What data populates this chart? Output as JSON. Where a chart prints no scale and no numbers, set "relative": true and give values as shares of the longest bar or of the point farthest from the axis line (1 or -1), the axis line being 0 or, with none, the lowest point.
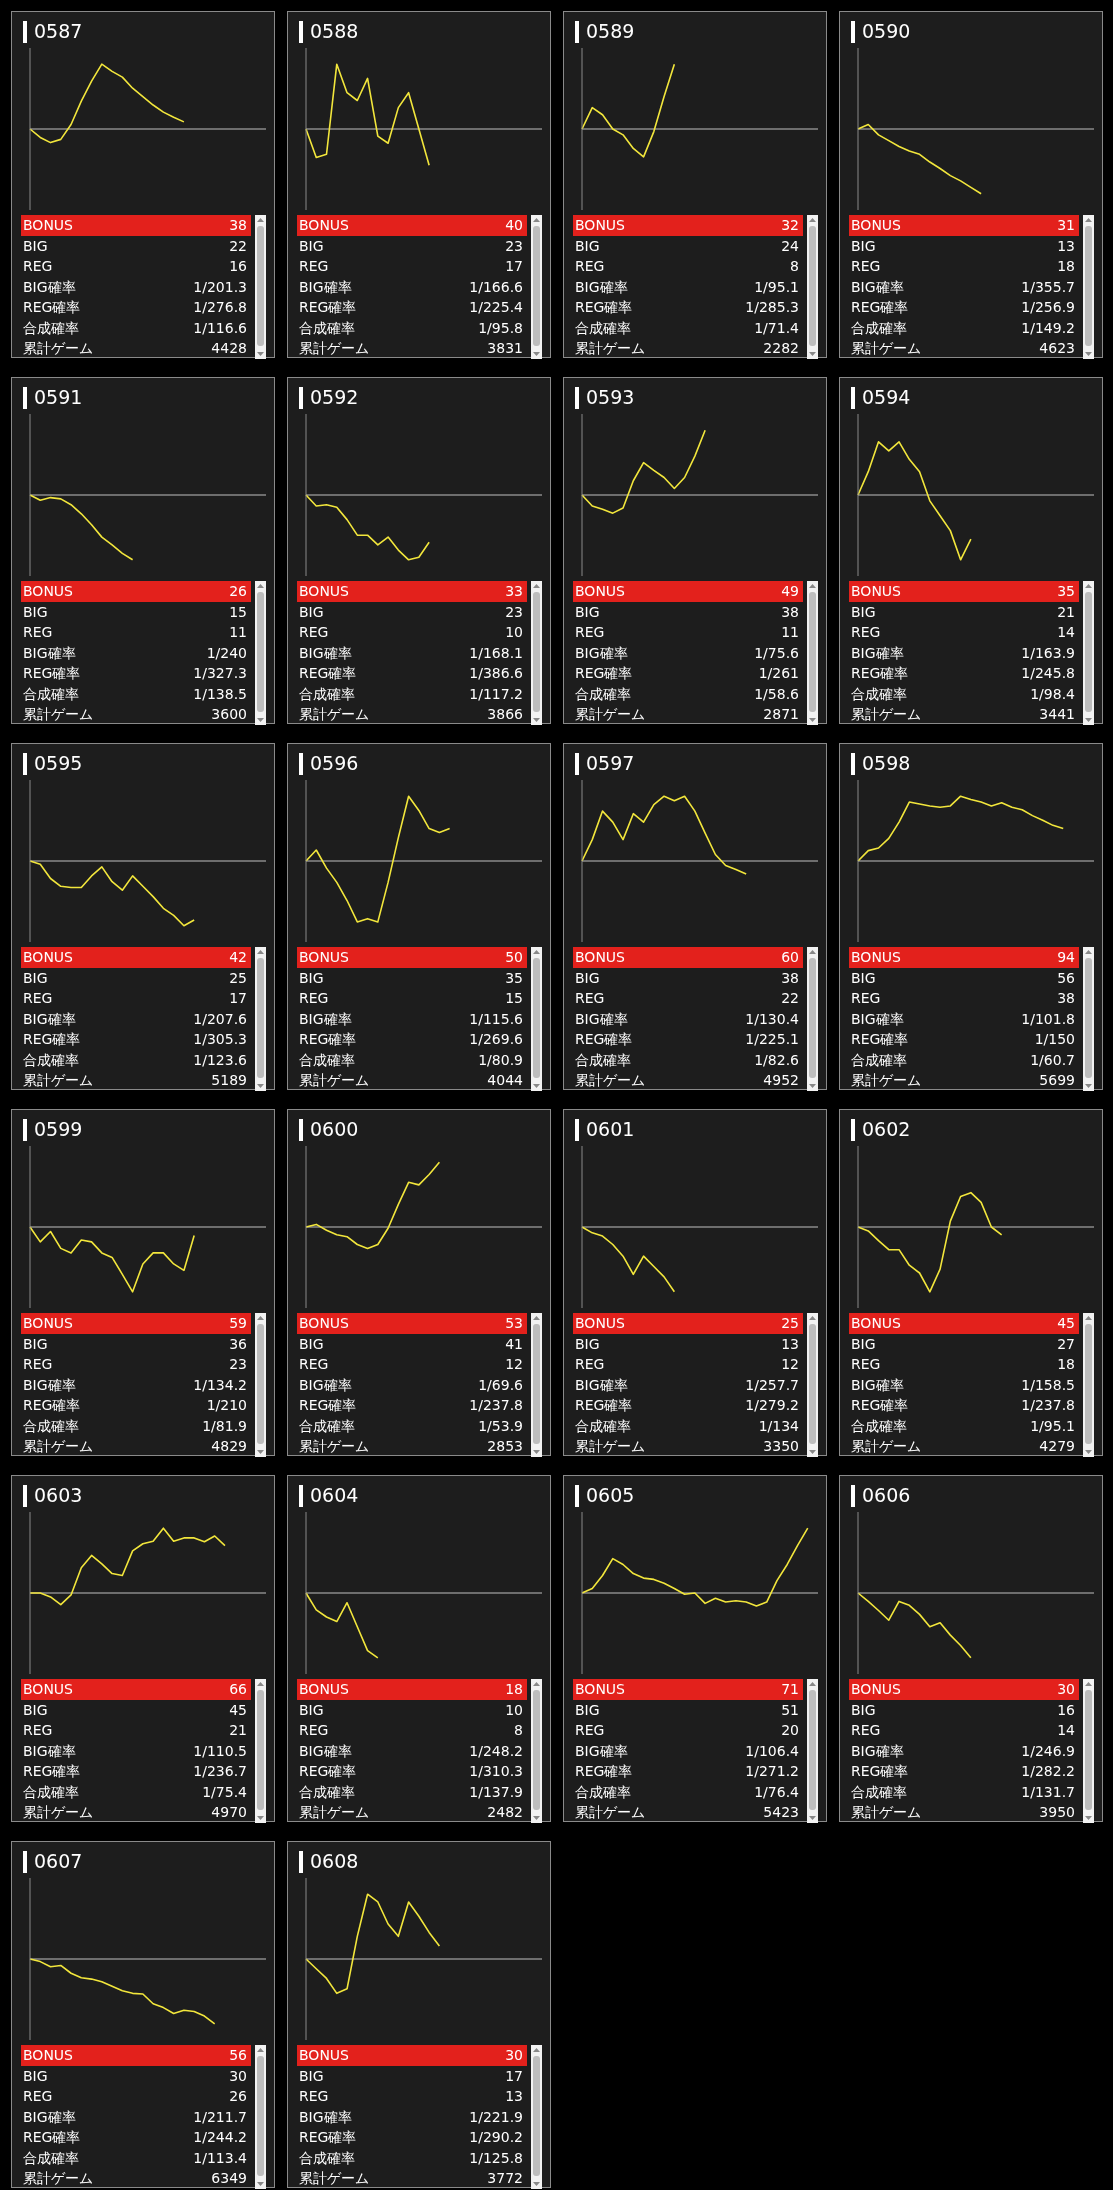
{
  "chart_data": [
    {
      "type": "line",
      "title": "0587",
      "relative": true,
      "categories": [
        null,
        null,
        null,
        null,
        null,
        null,
        null,
        null,
        null,
        null,
        null,
        null,
        null,
        null,
        null,
        null,
        null,
        null,
        null,
        null,
        null,
        null,
        null,
        null
      ],
      "series": [
        {
          "color": "#f2e63c",
          "values": [
            0,
            -0.13,
            -0.21,
            -0.16,
            0.07,
            0.43,
            0.74,
            1,
            0.89,
            0.8,
            0.63,
            0.5,
            0.37,
            0.26,
            0.18,
            0.11,
            null,
            null,
            null,
            null,
            null,
            null,
            null,
            null
          ]
        }
      ],
      "annotations": [
        "BONUS",
        "38",
        "BIG",
        "22",
        "REG",
        "16",
        "BIG確率",
        "1/201.3",
        "REG確率",
        "1/276.8",
        "合成確率",
        "1/116.6",
        "累計ゲーム",
        "4428"
      ]
    },
    {
      "type": "line",
      "title": "0588",
      "relative": true,
      "categories": [
        null,
        null,
        null,
        null,
        null,
        null,
        null,
        null,
        null,
        null,
        null,
        null,
        null,
        null,
        null,
        null,
        null,
        null,
        null,
        null,
        null,
        null,
        null,
        null
      ],
      "series": [
        {
          "color": "#f2e63c",
          "values": [
            0,
            -0.44,
            -0.39,
            1,
            0.56,
            0.44,
            0.78,
            -0.11,
            -0.22,
            0.33,
            0.56,
            0,
            -0.56,
            null,
            null,
            null,
            null,
            null,
            null,
            null,
            null,
            null,
            null,
            null
          ]
        }
      ],
      "annotations": [
        "BONUS",
        "40",
        "BIG",
        "23",
        "REG",
        "17",
        "BIG確率",
        "1/166.6",
        "REG確率",
        "1/225.4",
        "合成確率",
        "1/95.8",
        "累計ゲーム",
        "3831"
      ]
    },
    {
      "type": "line",
      "title": "0589",
      "relative": true,
      "categories": [
        null,
        null,
        null,
        null,
        null,
        null,
        null,
        null,
        null,
        null,
        null,
        null,
        null,
        null,
        null,
        null,
        null,
        null,
        null,
        null,
        null,
        null,
        null,
        null
      ],
      "series": [
        {
          "color": "#f2e63c",
          "values": [
            0,
            0.33,
            0.22,
            0,
            -0.09,
            -0.3,
            -0.43,
            -0.04,
            0.5,
            1,
            null,
            null,
            null,
            null,
            null,
            null,
            null,
            null,
            null,
            null,
            null,
            null,
            null,
            null
          ]
        }
      ],
      "annotations": [
        "BONUS",
        "32",
        "BIG",
        "24",
        "REG",
        "8",
        "BIG確率",
        "1/95.1",
        "REG確率",
        "1/285.3",
        "合成確率",
        "1/71.4",
        "累計ゲーム",
        "2282"
      ]
    },
    {
      "type": "line",
      "title": "0590",
      "relative": true,
      "categories": [
        null,
        null,
        null,
        null,
        null,
        null,
        null,
        null,
        null,
        null,
        null,
        null,
        null,
        null,
        null,
        null,
        null,
        null,
        null,
        null,
        null,
        null,
        null,
        null
      ],
      "series": [
        {
          "color": "#f2e63c",
          "values": [
            0,
            0.07,
            -0.09,
            -0.18,
            -0.27,
            -0.34,
            -0.39,
            -0.51,
            -0.61,
            -0.72,
            -0.8,
            -0.9,
            -1,
            null,
            null,
            null,
            null,
            null,
            null,
            null,
            null,
            null,
            null,
            null
          ]
        }
      ],
      "annotations": [
        "BONUS",
        "31",
        "BIG",
        "13",
        "REG",
        "18",
        "BIG確率",
        "1/355.7",
        "REG確率",
        "1/256.9",
        "合成確率",
        "1/149.2",
        "累計ゲーム",
        "4623"
      ]
    },
    {
      "type": "line",
      "title": "0591",
      "relative": true,
      "categories": [
        null,
        null,
        null,
        null,
        null,
        null,
        null,
        null,
        null,
        null,
        null,
        null,
        null,
        null,
        null,
        null,
        null,
        null,
        null,
        null,
        null,
        null,
        null,
        null
      ],
      "series": [
        {
          "color": "#f2e63c",
          "values": [
            0,
            -0.08,
            -0.04,
            -0.06,
            -0.15,
            -0.29,
            -0.46,
            -0.65,
            -0.77,
            -0.9,
            -1,
            null,
            null,
            null,
            null,
            null,
            null,
            null,
            null,
            null,
            null,
            null,
            null,
            null
          ]
        }
      ],
      "annotations": [
        "BONUS",
        "26",
        "BIG",
        "15",
        "REG",
        "11",
        "BIG確率",
        "1/240",
        "REG確率",
        "1/327.3",
        "合成確率",
        "1/138.5",
        "累計ゲーム",
        "3600"
      ]
    },
    {
      "type": "line",
      "title": "0592",
      "relative": true,
      "categories": [
        null,
        null,
        null,
        null,
        null,
        null,
        null,
        null,
        null,
        null,
        null,
        null,
        null,
        null,
        null,
        null,
        null,
        null,
        null,
        null,
        null,
        null,
        null,
        null
      ],
      "series": [
        {
          "color": "#f2e63c",
          "values": [
            0,
            -0.17,
            -0.15,
            -0.19,
            -0.38,
            -0.62,
            -0.62,
            -0.77,
            -0.65,
            -0.85,
            -1,
            -0.96,
            -0.73,
            null,
            null,
            null,
            null,
            null,
            null,
            null,
            null,
            null,
            null,
            null
          ]
        }
      ],
      "annotations": [
        "BONUS",
        "33",
        "BIG",
        "23",
        "REG",
        "10",
        "BIG確率",
        "1/168.1",
        "REG確率",
        "1/386.6",
        "合成確率",
        "1/117.2",
        "累計ゲーム",
        "3866"
      ]
    },
    {
      "type": "line",
      "title": "0593",
      "relative": true,
      "categories": [
        null,
        null,
        null,
        null,
        null,
        null,
        null,
        null,
        null,
        null,
        null,
        null,
        null,
        null,
        null,
        null,
        null,
        null,
        null,
        null,
        null,
        null,
        null,
        null
      ],
      "series": [
        {
          "color": "#f2e63c",
          "values": [
            0,
            -0.17,
            -0.22,
            -0.28,
            -0.2,
            0.22,
            0.5,
            0.38,
            0.27,
            0.1,
            0.27,
            0.6,
            1,
            null,
            null,
            null,
            null,
            null,
            null,
            null,
            null,
            null,
            null,
            null
          ]
        }
      ],
      "annotations": [
        "BONUS",
        "49",
        "BIG",
        "38",
        "REG",
        "11",
        "BIG確率",
        "1/75.6",
        "REG確率",
        "1/261",
        "合成確率",
        "1/58.6",
        "累計ゲーム",
        "2871"
      ]
    },
    {
      "type": "line",
      "title": "0594",
      "relative": true,
      "categories": [
        null,
        null,
        null,
        null,
        null,
        null,
        null,
        null,
        null,
        null,
        null,
        null,
        null,
        null,
        null,
        null,
        null,
        null,
        null,
        null,
        null,
        null,
        null,
        null
      ],
      "series": [
        {
          "color": "#f2e63c",
          "values": [
            0,
            0.36,
            0.82,
            0.68,
            0.82,
            0.55,
            0.36,
            -0.09,
            -0.32,
            -0.55,
            -1,
            -0.68,
            null,
            null,
            null,
            null,
            null,
            null,
            null,
            null,
            null,
            null,
            null,
            null
          ]
        }
      ],
      "annotations": [
        "BONUS",
        "35",
        "BIG",
        "21",
        "REG",
        "14",
        "BIG確率",
        "1/163.9",
        "REG確率",
        "1/245.8",
        "合成確率",
        "1/98.4",
        "累計ゲーム",
        "3441"
      ]
    },
    {
      "type": "line",
      "title": "0595",
      "relative": true,
      "categories": [
        null,
        null,
        null,
        null,
        null,
        null,
        null,
        null,
        null,
        null,
        null,
        null,
        null,
        null,
        null,
        null,
        null,
        null,
        null,
        null,
        null,
        null,
        null,
        null
      ],
      "series": [
        {
          "color": "#f2e63c",
          "values": [
            0,
            -0.05,
            -0.27,
            -0.39,
            -0.41,
            -0.41,
            -0.23,
            -0.09,
            -0.32,
            -0.45,
            -0.23,
            -0.39,
            -0.55,
            -0.73,
            -0.84,
            -1,
            -0.91,
            null,
            null,
            null,
            null,
            null,
            null,
            null
          ]
        }
      ],
      "annotations": [
        "BONUS",
        "42",
        "BIG",
        "25",
        "REG",
        "17",
        "BIG確率",
        "1/207.6",
        "REG確率",
        "1/305.3",
        "合成確率",
        "1/123.6",
        "累計ゲーム",
        "5189"
      ]
    },
    {
      "type": "line",
      "title": "0596",
      "relative": true,
      "categories": [
        null,
        null,
        null,
        null,
        null,
        null,
        null,
        null,
        null,
        null,
        null,
        null,
        null,
        null,
        null,
        null,
        null,
        null,
        null,
        null,
        null,
        null,
        null,
        null
      ],
      "series": [
        {
          "color": "#f2e63c",
          "values": [
            0,
            0.17,
            -0.11,
            -0.33,
            -0.61,
            -0.94,
            -0.89,
            -0.94,
            -0.33,
            0.36,
            1,
            0.78,
            0.5,
            0.44,
            0.5,
            null,
            null,
            null,
            null,
            null,
            null,
            null,
            null,
            null
          ]
        }
      ],
      "annotations": [
        "BONUS",
        "50",
        "BIG",
        "35",
        "REG",
        "15",
        "BIG確率",
        "1/115.6",
        "REG確率",
        "1/269.6",
        "合成確率",
        "1/80.9",
        "累計ゲーム",
        "4044"
      ]
    },
    {
      "type": "line",
      "title": "0597",
      "relative": true,
      "categories": [
        null,
        null,
        null,
        null,
        null,
        null,
        null,
        null,
        null,
        null,
        null,
        null,
        null,
        null,
        null,
        null,
        null,
        null,
        null,
        null,
        null,
        null,
        null,
        null
      ],
      "series": [
        {
          "color": "#f2e63c",
          "values": [
            0,
            0.33,
            0.77,
            0.6,
            0.33,
            0.73,
            0.6,
            0.87,
            1,
            0.93,
            1,
            0.77,
            0.43,
            0.1,
            -0.07,
            -0.13,
            -0.2,
            null,
            null,
            null,
            null,
            null,
            null,
            null
          ]
        }
      ],
      "annotations": [
        "BONUS",
        "60",
        "BIG",
        "38",
        "REG",
        "22",
        "BIG確率",
        "1/130.4",
        "REG確率",
        "1/225.1",
        "合成確率",
        "1/82.6",
        "累計ゲーム",
        "4952"
      ]
    },
    {
      "type": "line",
      "title": "0598",
      "relative": true,
      "categories": [
        null,
        null,
        null,
        null,
        null,
        null,
        null,
        null,
        null,
        null,
        null,
        null,
        null,
        null,
        null,
        null,
        null,
        null,
        null,
        null,
        null,
        null,
        null,
        null
      ],
      "series": [
        {
          "color": "#f2e63c",
          "values": [
            0,
            0.16,
            0.2,
            0.35,
            0.6,
            0.91,
            0.88,
            0.85,
            0.83,
            0.85,
            1,
            0.95,
            0.91,
            0.85,
            0.9,
            0.83,
            0.79,
            0.7,
            0.63,
            0.55,
            0.5,
            null,
            null,
            null
          ]
        }
      ],
      "annotations": [
        "BONUS",
        "94",
        "BIG",
        "56",
        "REG",
        "38",
        "BIG確率",
        "1/101.8",
        "REG確率",
        "1/150",
        "合成確率",
        "1/60.7",
        "累計ゲーム",
        "5699"
      ]
    },
    {
      "type": "line",
      "title": "0599",
      "relative": true,
      "categories": [
        null,
        null,
        null,
        null,
        null,
        null,
        null,
        null,
        null,
        null,
        null,
        null,
        null,
        null,
        null,
        null,
        null,
        null,
        null,
        null,
        null,
        null,
        null,
        null
      ],
      "series": [
        {
          "color": "#f2e63c",
          "values": [
            0,
            -0.23,
            -0.07,
            -0.33,
            -0.4,
            -0.2,
            -0.23,
            -0.4,
            -0.47,
            -0.73,
            -1,
            -0.57,
            -0.4,
            -0.4,
            -0.57,
            -0.67,
            -0.13,
            null,
            null,
            null,
            null,
            null,
            null,
            null
          ]
        }
      ],
      "annotations": [
        "BONUS",
        "59",
        "BIG",
        "36",
        "REG",
        "23",
        "BIG確率",
        "1/134.2",
        "REG確率",
        "1/210",
        "合成確率",
        "1/81.9",
        "累計ゲーム",
        "4829"
      ]
    },
    {
      "type": "line",
      "title": "0600",
      "relative": true,
      "categories": [
        null,
        null,
        null,
        null,
        null,
        null,
        null,
        null,
        null,
        null,
        null,
        null,
        null,
        null,
        null,
        null,
        null,
        null,
        null,
        null,
        null,
        null,
        null,
        null
      ],
      "series": [
        {
          "color": "#f2e63c",
          "values": [
            0,
            0.04,
            -0.05,
            -0.12,
            -0.15,
            -0.27,
            -0.33,
            -0.27,
            -0.02,
            0.35,
            0.69,
            0.65,
            0.81,
            1,
            null,
            null,
            null,
            null,
            null,
            null,
            null,
            null,
            null,
            null
          ]
        }
      ],
      "annotations": [
        "BONUS",
        "53",
        "BIG",
        "41",
        "REG",
        "12",
        "BIG確率",
        "1/69.6",
        "REG確率",
        "1/237.8",
        "合成確率",
        "1/53.9",
        "累計ゲーム",
        "2853"
      ]
    },
    {
      "type": "line",
      "title": "0601",
      "relative": true,
      "categories": [
        null,
        null,
        null,
        null,
        null,
        null,
        null,
        null,
        null,
        null,
        null,
        null,
        null,
        null,
        null,
        null,
        null,
        null,
        null,
        null,
        null,
        null,
        null,
        null
      ],
      "series": [
        {
          "color": "#f2e63c",
          "values": [
            0,
            -0.09,
            -0.14,
            -0.27,
            -0.45,
            -0.73,
            -0.45,
            -0.61,
            -0.77,
            -1,
            null,
            null,
            null,
            null,
            null,
            null,
            null,
            null,
            null,
            null,
            null,
            null,
            null,
            null
          ]
        }
      ],
      "annotations": [
        "BONUS",
        "25",
        "BIG",
        "13",
        "REG",
        "12",
        "BIG確率",
        "1/257.7",
        "REG確率",
        "1/279.2",
        "合成確率",
        "1/134",
        "累計ゲーム",
        "3350"
      ]
    },
    {
      "type": "line",
      "title": "0602",
      "relative": true,
      "categories": [
        null,
        null,
        null,
        null,
        null,
        null,
        null,
        null,
        null,
        null,
        null,
        null,
        null,
        null,
        null,
        null,
        null,
        null,
        null,
        null,
        null,
        null,
        null,
        null
      ],
      "series": [
        {
          "color": "#f2e63c",
          "values": [
            0,
            -0.06,
            -0.21,
            -0.35,
            -0.35,
            -0.59,
            -0.71,
            -1,
            -0.65,
            0.09,
            0.47,
            0.53,
            0.38,
            0,
            -0.12,
            null,
            null,
            null,
            null,
            null,
            null,
            null,
            null,
            null
          ]
        }
      ],
      "annotations": [
        "BONUS",
        "45",
        "BIG",
        "27",
        "REG",
        "18",
        "BIG確率",
        "1/158.5",
        "REG確率",
        "1/237.8",
        "合成確率",
        "1/95.1",
        "累計ゲーム",
        "4279"
      ]
    },
    {
      "type": "line",
      "title": "0603",
      "relative": true,
      "categories": [
        null,
        null,
        null,
        null,
        null,
        null,
        null,
        null,
        null,
        null,
        null,
        null,
        null,
        null,
        null,
        null,
        null,
        null,
        null,
        null,
        null,
        null,
        null,
        null
      ],
      "series": [
        {
          "color": "#f2e63c",
          "values": [
            0,
            0,
            -0.06,
            -0.18,
            -0.03,
            0.39,
            0.58,
            0.45,
            0.3,
            0.27,
            0.65,
            0.76,
            0.8,
            1,
            0.8,
            0.85,
            0.85,
            0.79,
            0.88,
            0.73,
            null,
            null,
            null,
            null
          ]
        }
      ],
      "annotations": [
        "BONUS",
        "66",
        "BIG",
        "45",
        "REG",
        "21",
        "BIG確率",
        "1/110.5",
        "REG確率",
        "1/236.7",
        "合成確率",
        "1/75.4",
        "累計ゲーム",
        "4970"
      ]
    },
    {
      "type": "line",
      "title": "0604",
      "relative": true,
      "categories": [
        null,
        null,
        null,
        null,
        null,
        null,
        null,
        null,
        null,
        null,
        null,
        null,
        null,
        null,
        null,
        null,
        null,
        null,
        null,
        null,
        null,
        null,
        null,
        null
      ],
      "series": [
        {
          "color": "#f2e63c",
          "values": [
            0,
            -0.26,
            -0.37,
            -0.44,
            -0.15,
            -0.52,
            -0.89,
            -1,
            null,
            null,
            null,
            null,
            null,
            null,
            null,
            null,
            null,
            null,
            null,
            null,
            null,
            null,
            null,
            null
          ]
        }
      ],
      "annotations": [
        "BONUS",
        "18",
        "BIG",
        "10",
        "REG",
        "8",
        "BIG確率",
        "1/248.2",
        "REG確率",
        "1/310.3",
        "合成確率",
        "1/137.9",
        "累計ゲーム",
        "2482"
      ]
    },
    {
      "type": "line",
      "title": "0605",
      "relative": true,
      "categories": [
        null,
        null,
        null,
        null,
        null,
        null,
        null,
        null,
        null,
        null,
        null,
        null,
        null,
        null,
        null,
        null,
        null,
        null,
        null,
        null,
        null,
        null,
        null,
        null
      ],
      "series": [
        {
          "color": "#f2e63c",
          "values": [
            0,
            0.07,
            0.27,
            0.53,
            0.44,
            0.3,
            0.23,
            0.21,
            0.15,
            0.07,
            -0.02,
            0,
            -0.16,
            -0.08,
            -0.14,
            -0.12,
            -0.14,
            -0.2,
            -0.14,
            0.19,
            0.44,
            0.73,
            1,
            null
          ]
        }
      ],
      "annotations": [
        "BONUS",
        "71",
        "BIG",
        "51",
        "REG",
        "20",
        "BIG確率",
        "1/106.4",
        "REG確率",
        "1/271.2",
        "合成確率",
        "1/76.4",
        "累計ゲーム",
        "5423"
      ]
    },
    {
      "type": "line",
      "title": "0606",
      "relative": true,
      "categories": [
        null,
        null,
        null,
        null,
        null,
        null,
        null,
        null,
        null,
        null,
        null,
        null,
        null,
        null,
        null,
        null,
        null,
        null,
        null,
        null,
        null,
        null,
        null,
        null
      ],
      "series": [
        {
          "color": "#f2e63c",
          "values": [
            0,
            -0.13,
            -0.27,
            -0.42,
            -0.13,
            -0.19,
            -0.33,
            -0.52,
            -0.46,
            -0.65,
            -0.81,
            -1,
            null,
            null,
            null,
            null,
            null,
            null,
            null,
            null,
            null,
            null,
            null,
            null
          ]
        }
      ],
      "annotations": [
        "BONUS",
        "30",
        "BIG",
        "16",
        "REG",
        "14",
        "BIG確率",
        "1/246.9",
        "REG確率",
        "1/282.2",
        "合成確率",
        "1/131.7",
        "累計ゲーム",
        "3950"
      ]
    },
    {
      "type": "line",
      "title": "0607",
      "relative": true,
      "categories": [
        null,
        null,
        null,
        null,
        null,
        null,
        null,
        null,
        null,
        null,
        null,
        null,
        null,
        null,
        null,
        null,
        null,
        null,
        null,
        null,
        null,
        null,
        null,
        null
      ],
      "series": [
        {
          "color": "#f2e63c",
          "values": [
            0,
            -0.04,
            -0.12,
            -0.1,
            -0.22,
            -0.29,
            -0.31,
            -0.35,
            -0.42,
            -0.49,
            -0.53,
            -0.54,
            -0.69,
            -0.75,
            -0.84,
            -0.79,
            -0.81,
            -0.88,
            -1,
            null,
            null,
            null,
            null,
            null
          ]
        }
      ],
      "annotations": [
        "BONUS",
        "56",
        "BIG",
        "30",
        "REG",
        "26",
        "BIG確率",
        "1/211.7",
        "REG確率",
        "1/244.2",
        "合成確率",
        "1/113.4",
        "累計ゲーム",
        "6349"
      ]
    },
    {
      "type": "line",
      "title": "0608",
      "relative": true,
      "categories": [
        null,
        null,
        null,
        null,
        null,
        null,
        null,
        null,
        null,
        null,
        null,
        null,
        null,
        null,
        null,
        null,
        null,
        null,
        null,
        null,
        null,
        null,
        null,
        null
      ],
      "series": [
        {
          "color": "#f2e63c",
          "values": [
            0,
            -0.15,
            -0.3,
            -0.53,
            -0.46,
            0.35,
            1,
            0.88,
            0.54,
            0.35,
            0.88,
            0.66,
            0.41,
            0.2,
            null,
            null,
            null,
            null,
            null,
            null,
            null,
            null,
            null,
            null
          ]
        }
      ],
      "annotations": [
        "BONUS",
        "30",
        "BIG",
        "17",
        "REG",
        "13",
        "BIG確率",
        "1/221.9",
        "REG確率",
        "1/290.2",
        "合成確率",
        "1/125.8",
        "累計ゲーム",
        "3772"
      ]
    }
  ]
}
